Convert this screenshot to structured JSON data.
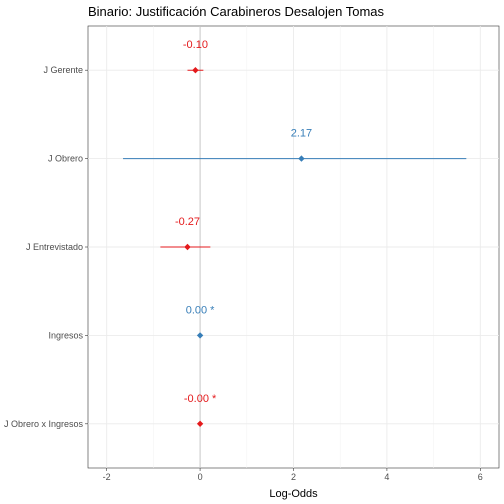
{
  "chart_data": {
    "type": "scatter",
    "title": "Binario: Justificación Carabineros Desalojen Tomas",
    "xlabel": "Log-Odds",
    "ylabel": "",
    "xlim": [
      -2.4,
      6.4
    ],
    "x_ticks": [
      -2,
      0,
      2,
      4,
      6
    ],
    "x_tick_labels": [
      "-2",
      "0",
      "2",
      "4",
      "6"
    ],
    "grid": true,
    "colors": {
      "negative": "#e41a1c",
      "positive": "#377eb8"
    },
    "terms": [
      {
        "label": "J Gerente",
        "estimate": -0.1,
        "ci_low": -0.27,
        "ci_high": 0.07,
        "text": "-0.10",
        "color": "#e41a1c"
      },
      {
        "label": "J Obrero",
        "estimate": 2.17,
        "ci_low": -1.65,
        "ci_high": 5.7,
        "text": "2.17",
        "color": "#377eb8"
      },
      {
        "label": "J Entrevistado",
        "estimate": -0.27,
        "ci_low": -0.85,
        "ci_high": 0.22,
        "text": "-0.27",
        "color": "#e41a1c"
      },
      {
        "label": "Ingresos",
        "estimate": 0.0,
        "ci_low": 0.0,
        "ci_high": 0.0,
        "text": "0.00 *",
        "color": "#377eb8"
      },
      {
        "label": "J Obrero x Ingresos",
        "estimate": 0.0,
        "ci_low": 0.0,
        "ci_high": 0.0,
        "text": "-0.00 *",
        "color": "#e41a1c"
      }
    ]
  }
}
